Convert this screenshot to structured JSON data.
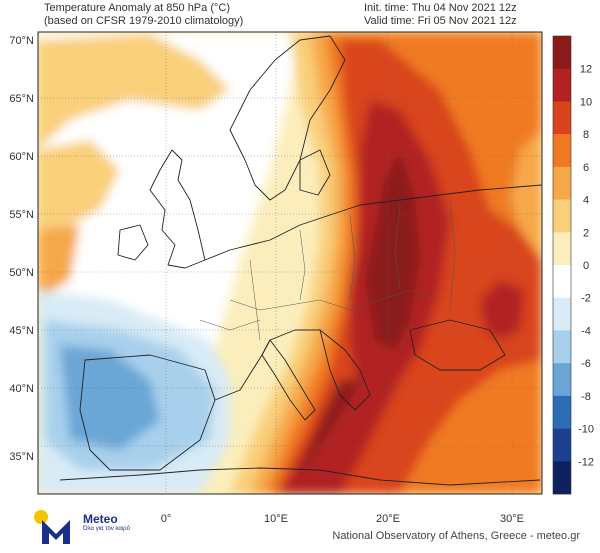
{
  "header": {
    "title_line1": "Temperature Anomaly at 850 hPa (°C)",
    "title_line2": "(based on CFSR 1979-2010 climatology)",
    "init_time": "Init. time: Thu 04 Nov 2021 12z",
    "valid_time": "Valid time: Fri 05 Nov 2021 12z"
  },
  "map": {
    "lat_labels": [
      "70°N",
      "65°N",
      "60°N",
      "55°N",
      "50°N",
      "45°N",
      "40°N",
      "35°N"
    ],
    "lon_labels": [
      "0°",
      "10°E",
      "20°E",
      "30°E"
    ],
    "field": "temperature anomaly at 850 hPa",
    "colorbar": {
      "labels": [
        "12",
        "10",
        "8",
        "6",
        "4",
        "2",
        "0",
        "-2",
        "-4",
        "-6",
        "-8",
        "-10",
        "-12"
      ],
      "colors": [
        "#8b1a1a",
        "#b22222",
        "#d9441c",
        "#f07a22",
        "#f6a848",
        "#f9cf7a",
        "#fbeebc",
        "#ffffff",
        "#d8ebf6",
        "#a8d0ec",
        "#6aa6d6",
        "#2c6eb5",
        "#1c3f8f",
        "#0d2160"
      ]
    }
  },
  "logo": {
    "name": "Meteo",
    "tagline": "Όλα για τον καιρό"
  },
  "footer": {
    "credit": "National Observatory of Athens, Greece - meteo.gr"
  }
}
